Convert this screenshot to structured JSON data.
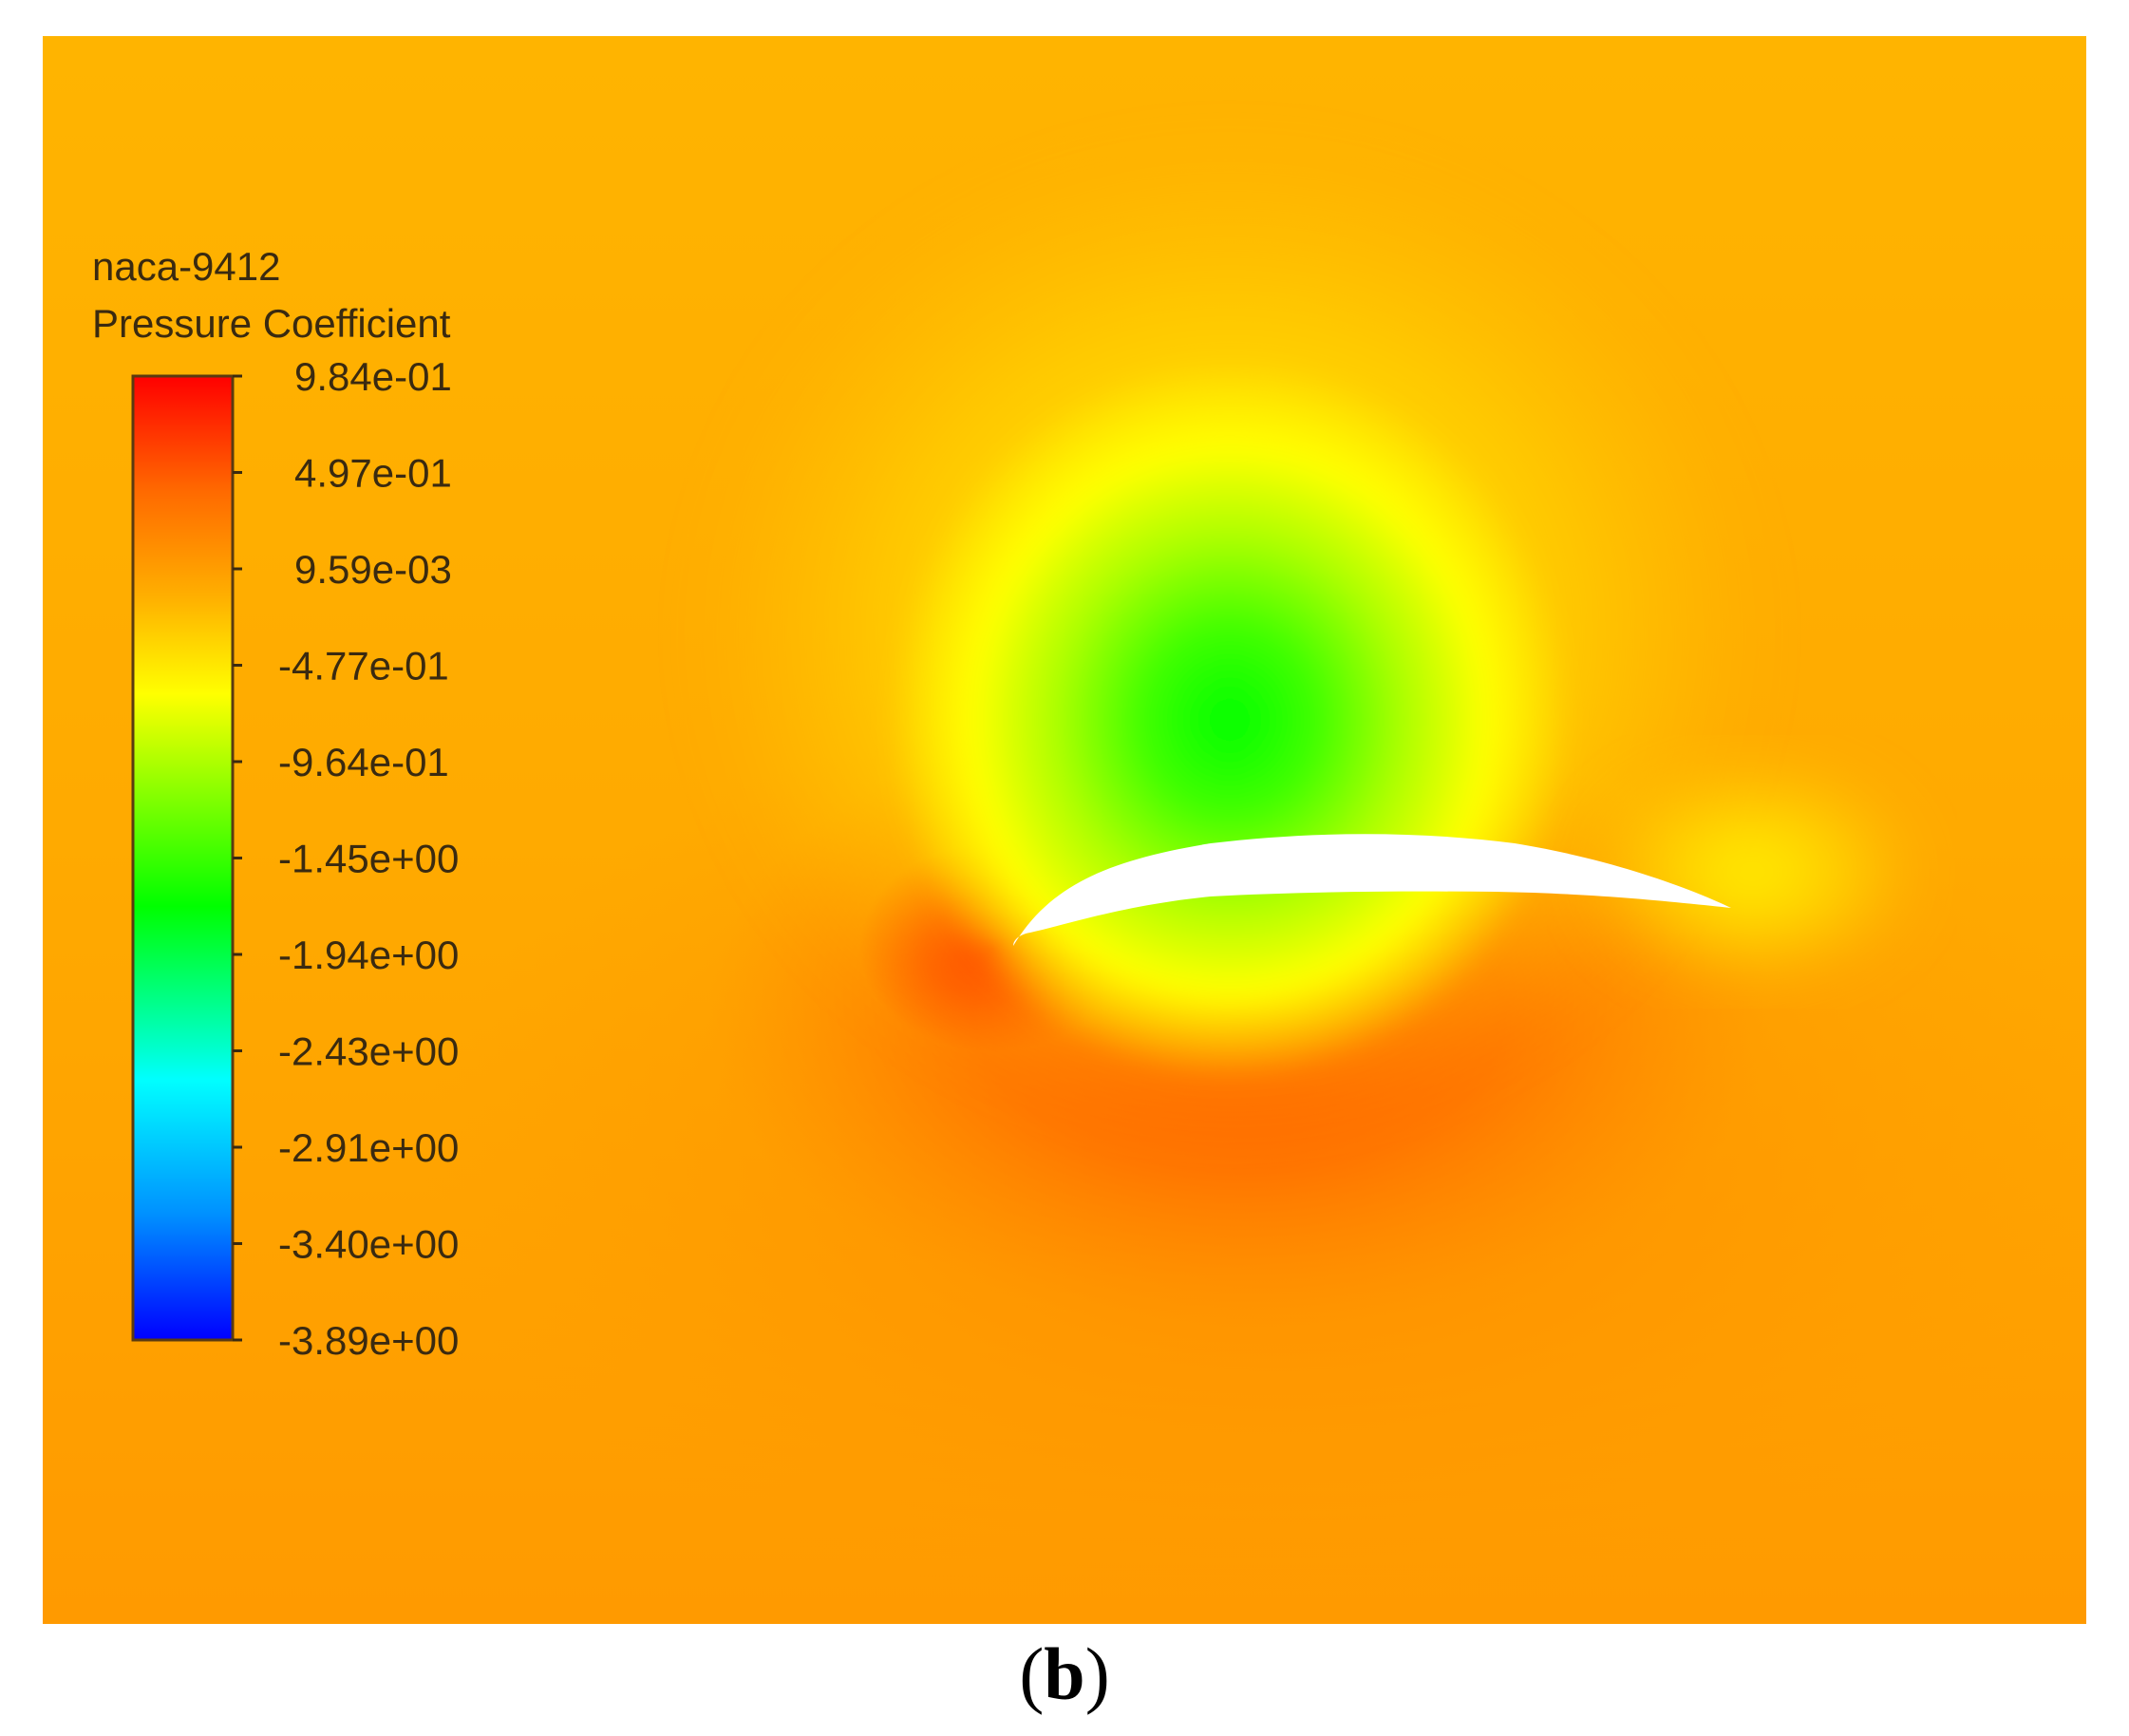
{
  "legend": {
    "title_line1": "naca-9412",
    "title_line2": "Pressure Coefficient",
    "ticks": [
      "9.84e-01",
      "4.97e-01",
      "9.59e-03",
      "-4.77e-01",
      "-9.64e-01",
      "-1.45e+00",
      "-1.94e+00",
      "-2.43e+00",
      "-2.91e+00",
      "-3.40e+00",
      "-3.89e+00"
    ],
    "colors": {
      "max": "#ff0000",
      "orange": "#ffa500",
      "yellow": "#ffff00",
      "green": "#00ff00",
      "cyan": "#00ffff",
      "min": "#0000ff"
    }
  },
  "caption": {
    "open": "(",
    "label": "b",
    "close": ")"
  },
  "colors": {
    "background_field": "#ffb000",
    "airfoil": "#ffffff"
  }
}
